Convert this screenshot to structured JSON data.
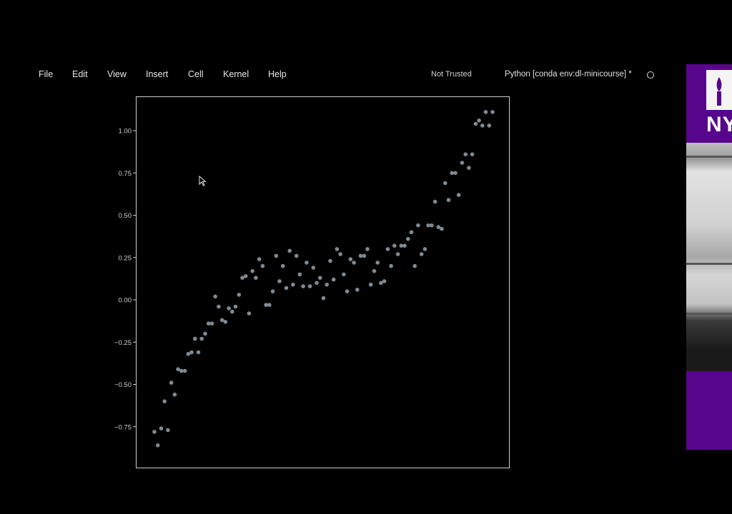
{
  "menu": {
    "items": [
      "File",
      "Edit",
      "View",
      "Insert",
      "Cell",
      "Kernel",
      "Help"
    ],
    "trust_status": "Not Trusted",
    "kernel_name": "Python [conda env:dl-minicourse] *",
    "kernel_status_icon": "kernel-idle-circle-icon"
  },
  "side_panel": {
    "logo_text": "NY",
    "logo_color": "#57068c"
  },
  "chart_data": {
    "type": "scatter",
    "title": "",
    "xlabel": "",
    "ylabel": "",
    "yticks": [
      "1.00",
      "0.75",
      "0.50",
      "0.25",
      "0.00",
      "−0.25",
      "−0.50",
      "−0.75"
    ],
    "ytick_values": [
      1.0,
      0.75,
      0.5,
      0.25,
      0.0,
      -0.25,
      -0.5,
      -0.75
    ],
    "ylim": [
      -0.88,
      1.2
    ],
    "xlim": [
      -1.1,
      1.1
    ],
    "grid": false,
    "point_color": "#7f8a93",
    "series": [
      {
        "x": [
          -1.0,
          -0.98,
          -0.96,
          -0.94,
          -0.92,
          -0.9,
          -0.88,
          -0.86,
          -0.84,
          -0.82,
          -0.8,
          -0.78,
          -0.76,
          -0.74,
          -0.72,
          -0.7,
          -0.68,
          -0.66,
          -0.64,
          -0.62,
          -0.6,
          -0.58,
          -0.56,
          -0.54,
          -0.52,
          -0.5,
          -0.48,
          -0.46,
          -0.44,
          -0.42,
          -0.4,
          -0.38,
          -0.36,
          -0.34,
          -0.32,
          -0.3,
          -0.28,
          -0.26,
          -0.24,
          -0.22,
          -0.2,
          -0.18,
          -0.16,
          -0.14,
          -0.12,
          -0.1,
          -0.08,
          -0.06,
          -0.04,
          -0.02,
          0.0,
          0.02,
          0.04,
          0.06,
          0.08,
          0.1,
          0.12,
          0.14,
          0.16,
          0.18,
          0.2,
          0.22,
          0.24,
          0.26,
          0.28,
          0.3,
          0.32,
          0.34,
          0.36,
          0.38,
          0.4,
          0.42,
          0.44,
          0.46,
          0.48,
          0.5,
          0.52,
          0.54,
          0.56,
          0.58,
          0.6,
          0.62,
          0.64,
          0.66,
          0.68,
          0.7,
          0.72,
          0.74,
          0.76,
          0.78,
          0.8,
          0.82,
          0.84,
          0.86,
          0.88,
          0.9,
          0.92,
          0.94,
          0.96,
          0.98,
          1.0
        ],
        "y": [
          -0.78,
          -0.86,
          -0.76,
          -0.6,
          -0.77,
          -0.49,
          -0.56,
          -0.41,
          -0.42,
          -0.42,
          -0.32,
          -0.31,
          -0.23,
          -0.31,
          -0.23,
          -0.2,
          -0.14,
          -0.14,
          0.02,
          -0.04,
          -0.12,
          -0.13,
          -0.05,
          -0.07,
          -0.04,
          0.03,
          0.13,
          0.14,
          -0.08,
          0.17,
          0.13,
          0.24,
          0.2,
          -0.03,
          -0.03,
          0.05,
          0.26,
          0.11,
          0.2,
          0.07,
          0.29,
          0.09,
          0.26,
          0.15,
          0.08,
          0.22,
          0.08,
          0.19,
          0.1,
          0.13,
          0.01,
          0.09,
          0.23,
          0.12,
          0.3,
          0.27,
          0.15,
          0.05,
          0.24,
          0.22,
          0.06,
          0.26,
          0.26,
          0.3,
          0.09,
          0.17,
          0.22,
          0.1,
          0.11,
          0.3,
          0.2,
          0.32,
          0.27,
          0.32,
          0.32,
          0.36,
          0.4,
          0.2,
          0.44,
          0.27,
          0.3,
          0.44,
          0.44,
          0.58,
          0.43,
          0.42,
          0.69,
          0.59,
          0.75,
          0.75,
          0.62,
          0.81,
          0.86,
          0.78,
          0.86,
          1.04,
          1.06,
          1.03,
          1.11,
          1.03,
          1.11
        ]
      }
    ]
  }
}
